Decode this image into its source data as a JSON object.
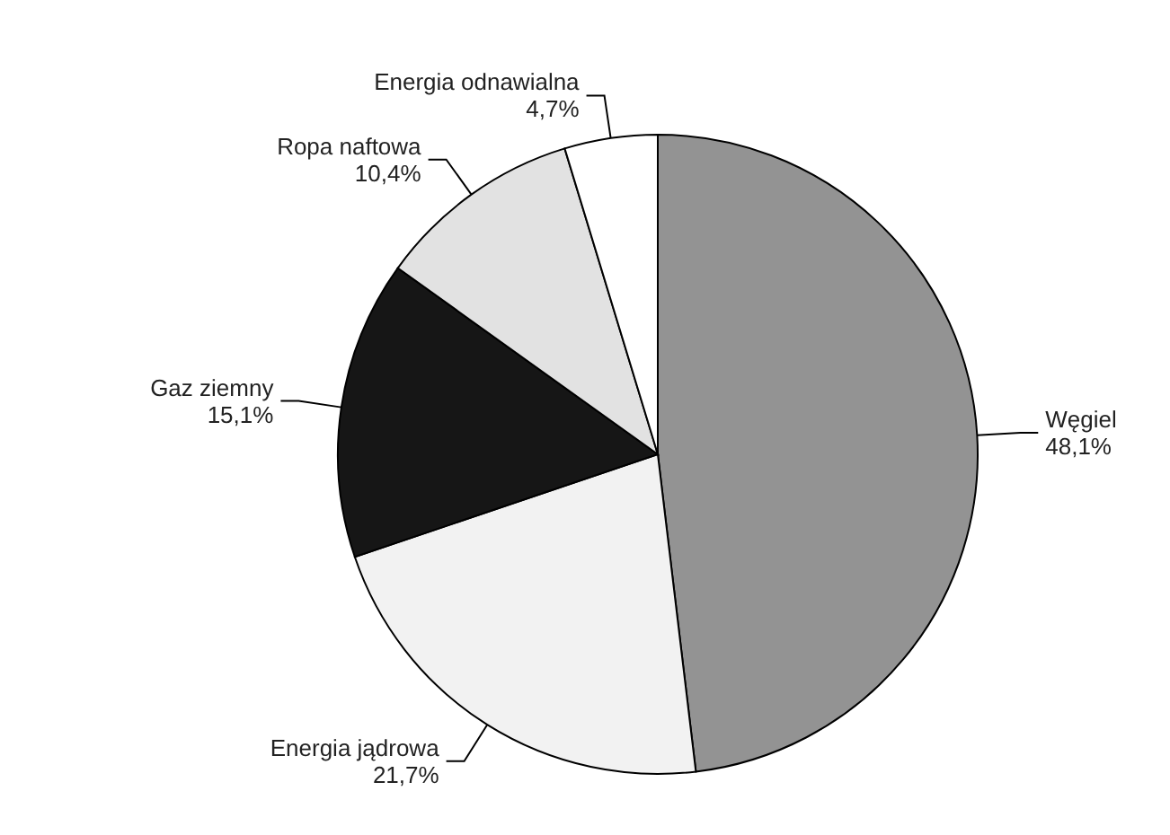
{
  "chart_data": {
    "type": "pie",
    "categories": [
      "Węgiel",
      "Energia jądrowa",
      "Gaz ziemny",
      "Ropa naftowa",
      "Energia odnawialna"
    ],
    "values": [
      48.1,
      21.7,
      15.1,
      10.4,
      4.7
    ],
    "value_labels": [
      "48,1%",
      "21,7%",
      "15,1%",
      "10,4%",
      "4,7%"
    ],
    "colors": [
      "#939393",
      "#f2f2f2",
      "#161616",
      "#e2e2e2",
      "#ffffff"
    ]
  }
}
